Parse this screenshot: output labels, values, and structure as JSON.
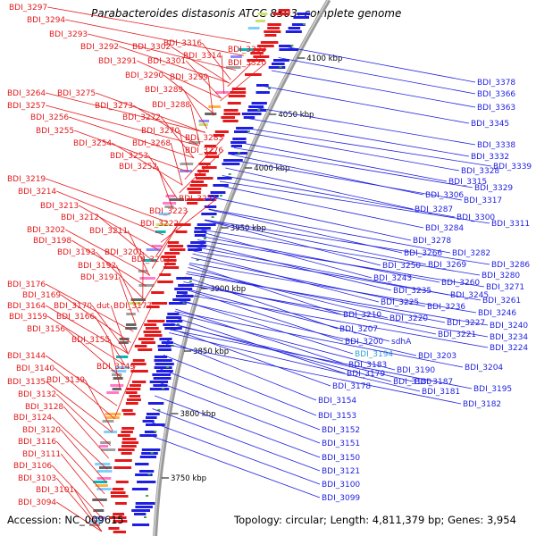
{
  "title": "Parabacteroides distasonis ATCC 8503, complete genome",
  "accession": "Accession: NC_009615",
  "summary": "Topology: circular; Length: 4,811,379 bp; Genes: 3,954",
  "colors": {
    "forward": "#e31a1c",
    "reverse": "#1f1fe0",
    "highlight": "#29a3d6",
    "backbone": "#999999",
    "gc": "#3aa64a"
  },
  "kbp_marks": [
    "4100 kbp",
    "4050 kbp",
    "4000 kbp",
    "3950 kbp",
    "3900 kbp",
    "3850 kbp",
    "3800 kbp",
    "3750 kbp"
  ],
  "left_labels": [
    "BDI_3297",
    "BDI_3294",
    "BDI_3293",
    "BDI_3292",
    "BDI_3302",
    "BDI_3316",
    "BDI_3333",
    "BDI_3291",
    "BDI_3301",
    "BDI_3314",
    "BDI_3320",
    "BDI_3290",
    "BDI_3299",
    "BDI_3289",
    "BDI_3264",
    "BDI_3275",
    "BDI_3288",
    "BDI_3257",
    "BDI_3273",
    "BDI_3256",
    "BDI_3272",
    "BDI_3255",
    "BDI_3270",
    "BDI_3283",
    "BDI_3254",
    "BDI_3268",
    "BDI_3276",
    "BDI_3253",
    "BDI_3252",
    "BDI_3219",
    "BDI_3214",
    "BDI_3251",
    "BDI_3213",
    "BDI_3223",
    "BDI_3212",
    "BDI_3222",
    "BDI_3211",
    "BDI_3202",
    "BDI_3198",
    "BDI_3193",
    "BDI_3201",
    "BDI_3205",
    "BDI_3192",
    "BDI_3191",
    "BDI_3176",
    "BDI_3169",
    "BDI_3164",
    "BDI_3170",
    "dut",
    "BDI_3177",
    "BDI_3159",
    "BDI_3166",
    "BDI_3156",
    "BDI_3155",
    "BDI_3144",
    "BDI_3149",
    "BDI_3140",
    "BDI_3135",
    "BDI_3139",
    "BDI_3132",
    "BDI_3128",
    "BDI_3124",
    "BDI_3120",
    "BDI_3116",
    "BDI_3111",
    "BDI_3106",
    "BDI_3103",
    "BDI_3101",
    "BDI_3094"
  ],
  "right_labels": [
    "BDI_3378",
    "BDI_3366",
    "BDI_3363",
    "BDI_3345",
    "BDI_3338",
    "BDI_3332",
    "BDI_3339",
    "BDI_3328",
    "BDI_3315",
    "BDI_3329",
    "BDI_3306",
    "BDI_3317",
    "BDI_3287",
    "BDI_3300",
    "BDI_3311",
    "BDI_3284",
    "BDI_3278",
    "BDI_3266",
    "BDI_3282",
    "BDI_3269",
    "BDI_3286",
    "BDI_3250",
    "BDI_3280",
    "BDI_3243",
    "BDI_3260",
    "BDI_3271",
    "BDI_3235",
    "BDI_3245",
    "BDI_3225",
    "BDI_3236",
    "BDI_3261",
    "BDI_3246",
    "BDI_3210",
    "BDI_3220",
    "BDI_3227",
    "BDI_3240",
    "BDI_3207",
    "BDI_3221",
    "BDI_3234",
    "BDI_3200",
    "sdhA",
    "BDI_3224",
    "BDI_3194",
    "BDI_3203",
    "BDI_3183",
    "BDI_3204",
    "BDI_3179",
    "BDI_3190",
    "BDI_3187",
    "BDI_3178",
    "BDI_3180",
    "BDI_3181",
    "BDI_3195",
    "BDI_3182",
    "BDI_3154",
    "BDI_3153",
    "BDI_3152",
    "BDI_3151",
    "BDI_3150",
    "BDI_3121",
    "BDI_3100",
    "BDI_3099"
  ]
}
